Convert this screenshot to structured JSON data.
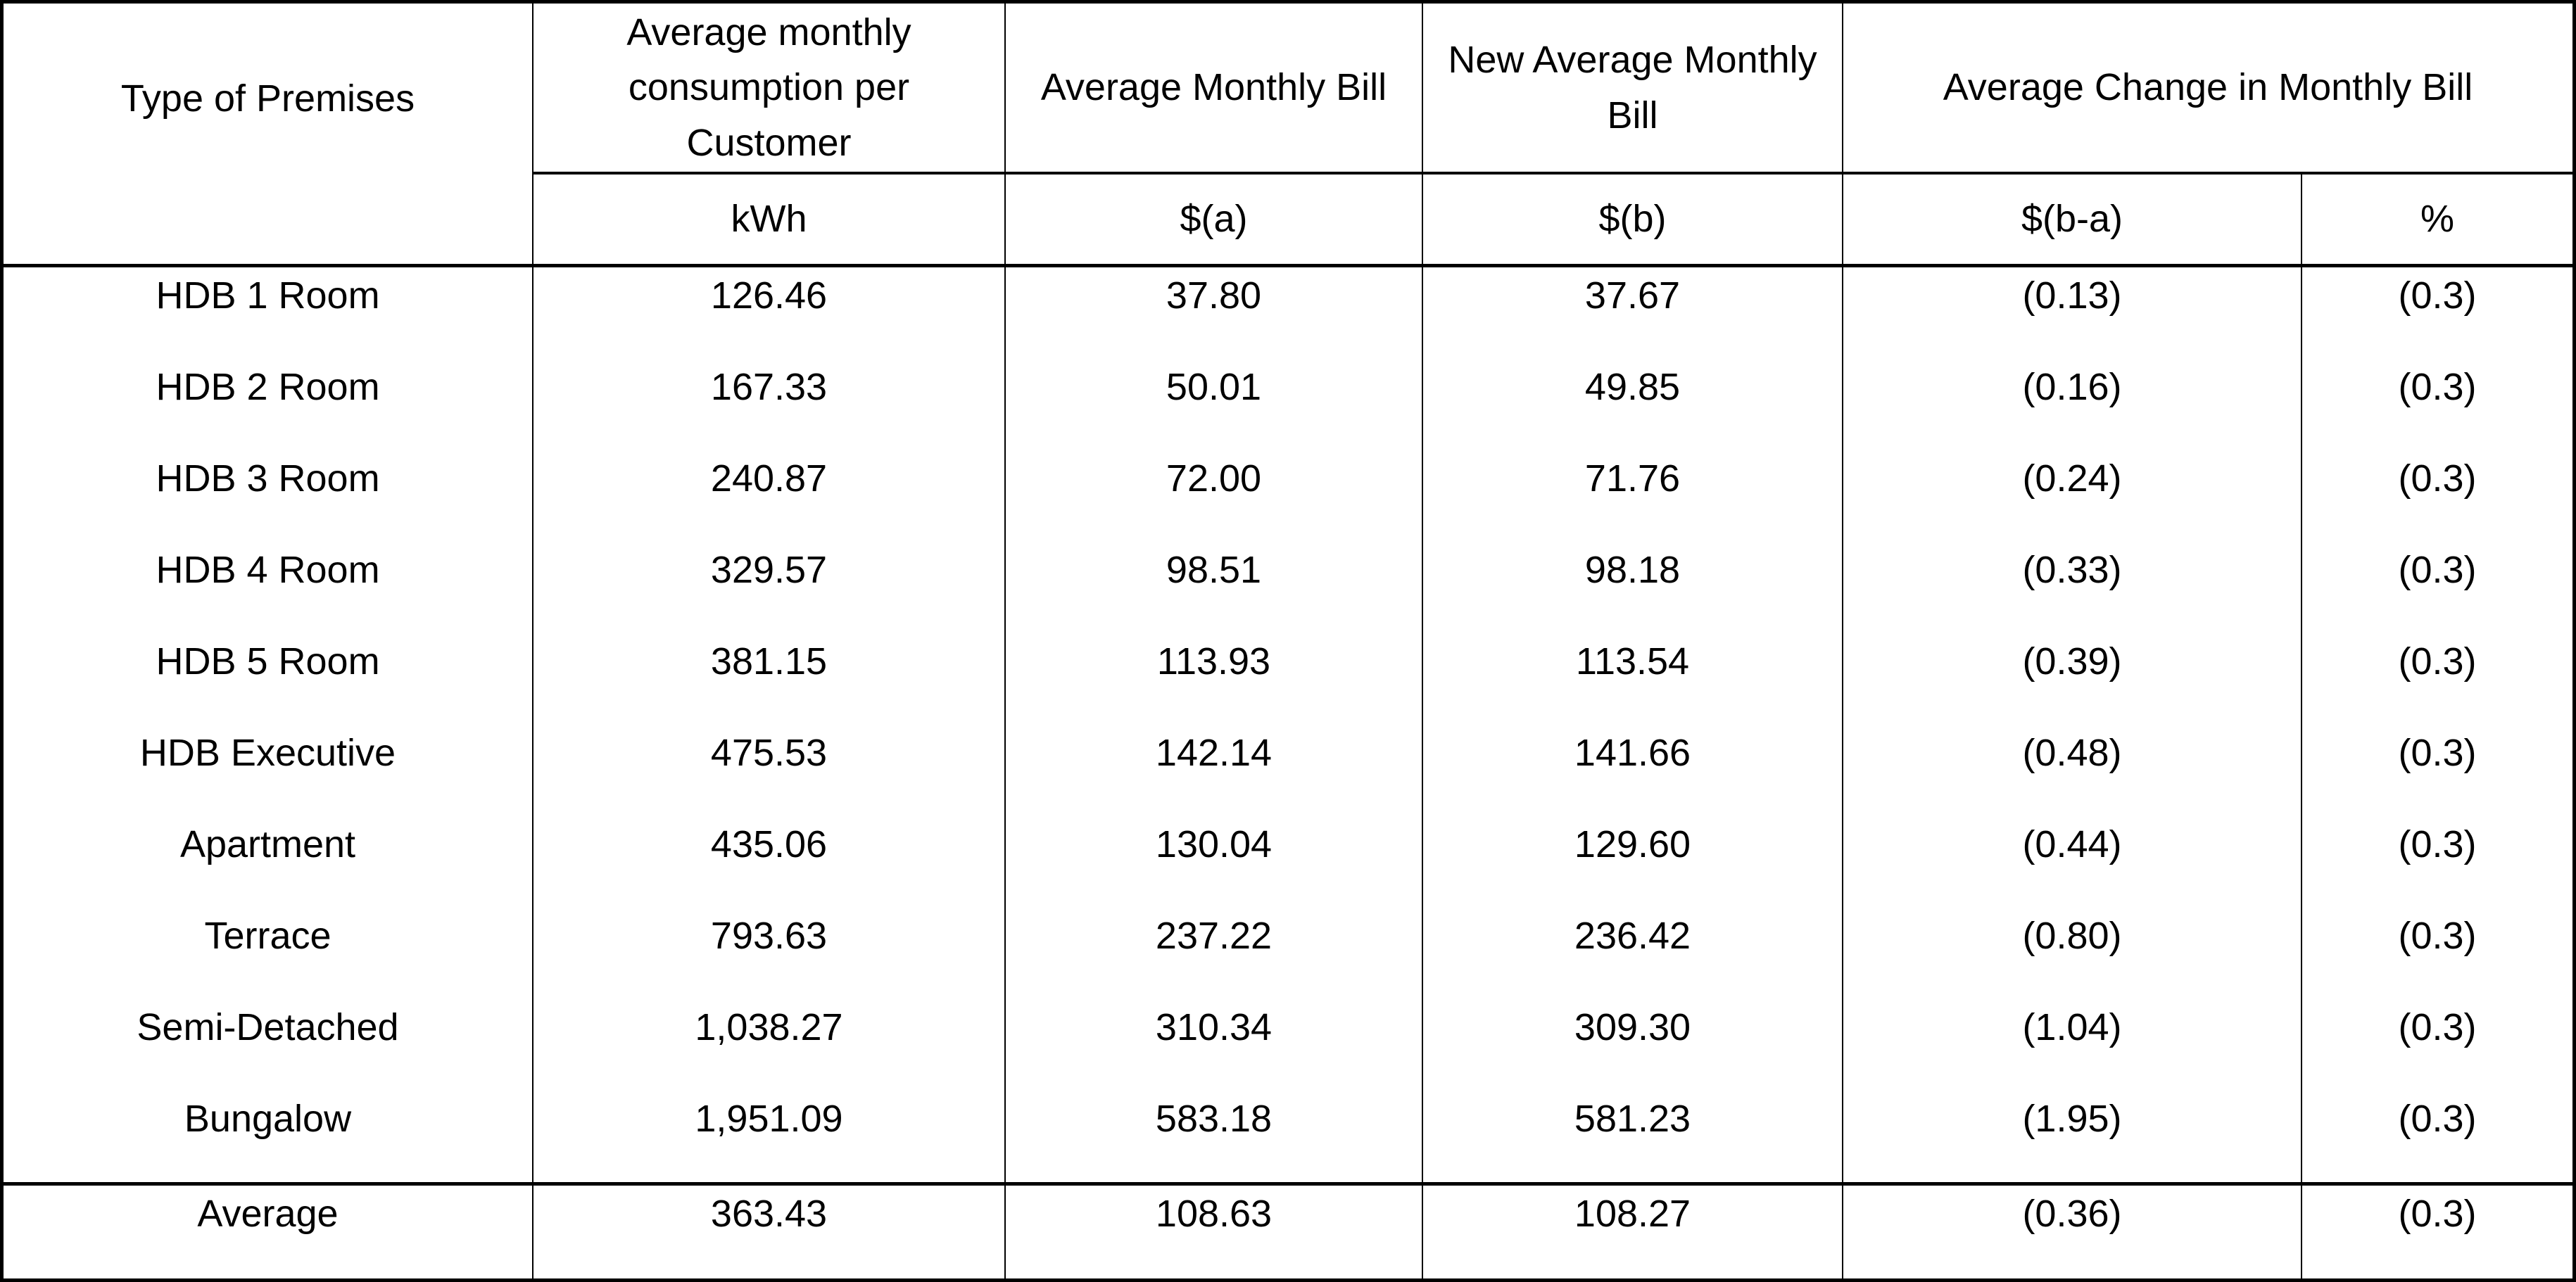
{
  "table": {
    "header": {
      "premises": "Type of Premises",
      "consumption": "Average monthly consumption per Customer",
      "avg_bill": "Average Monthly Bill",
      "new_avg_bill": "New Average Monthly Bill",
      "avg_change": "Average Change in Monthly Bill"
    },
    "units": {
      "kwh": "kWh",
      "a": "$(a)",
      "b": "$(b)",
      "b_minus_a": "$(b-a)",
      "pct": "%"
    },
    "rows": [
      {
        "premises": "HDB 1 Room",
        "kwh": "126.46",
        "bill_a": "37.80",
        "bill_b": "37.67",
        "change": "(0.13)",
        "change_pct": "(0.3)"
      },
      {
        "premises": "HDB 2 Room",
        "kwh": "167.33",
        "bill_a": "50.01",
        "bill_b": "49.85",
        "change": "(0.16)",
        "change_pct": "(0.3)"
      },
      {
        "premises": "HDB 3 Room",
        "kwh": "240.87",
        "bill_a": "72.00",
        "bill_b": "71.76",
        "change": "(0.24)",
        "change_pct": "(0.3)"
      },
      {
        "premises": "HDB 4 Room",
        "kwh": "329.57",
        "bill_a": "98.51",
        "bill_b": "98.18",
        "change": "(0.33)",
        "change_pct": "(0.3)"
      },
      {
        "premises": "HDB 5 Room",
        "kwh": "381.15",
        "bill_a": "113.93",
        "bill_b": "113.54",
        "change": "(0.39)",
        "change_pct": "(0.3)"
      },
      {
        "premises": "HDB Executive",
        "kwh": "475.53",
        "bill_a": "142.14",
        "bill_b": "141.66",
        "change": "(0.48)",
        "change_pct": "(0.3)"
      },
      {
        "premises": "Apartment",
        "kwh": "435.06",
        "bill_a": "130.04",
        "bill_b": "129.60",
        "change": "(0.44)",
        "change_pct": "(0.3)"
      },
      {
        "premises": "Terrace",
        "kwh": "793.63",
        "bill_a": "237.22",
        "bill_b": "236.42",
        "change": "(0.80)",
        "change_pct": "(0.3)"
      },
      {
        "premises": "Semi-Detached",
        "kwh": "1,038.27",
        "bill_a": "310.34",
        "bill_b": "309.30",
        "change": "(1.04)",
        "change_pct": "(0.3)"
      },
      {
        "premises": "Bungalow",
        "kwh": "1,951.09",
        "bill_a": "583.18",
        "bill_b": "581.23",
        "change": "(1.95)",
        "change_pct": "(0.3)"
      }
    ],
    "average_row": {
      "premises": "Average",
      "kwh": "363.43",
      "bill_a": "108.63",
      "bill_b": "108.27",
      "change": "(0.36)",
      "change_pct": "(0.3)"
    }
  },
  "colors": {
    "border": "#000000",
    "background": "#ffffff",
    "text": "#000000"
  }
}
